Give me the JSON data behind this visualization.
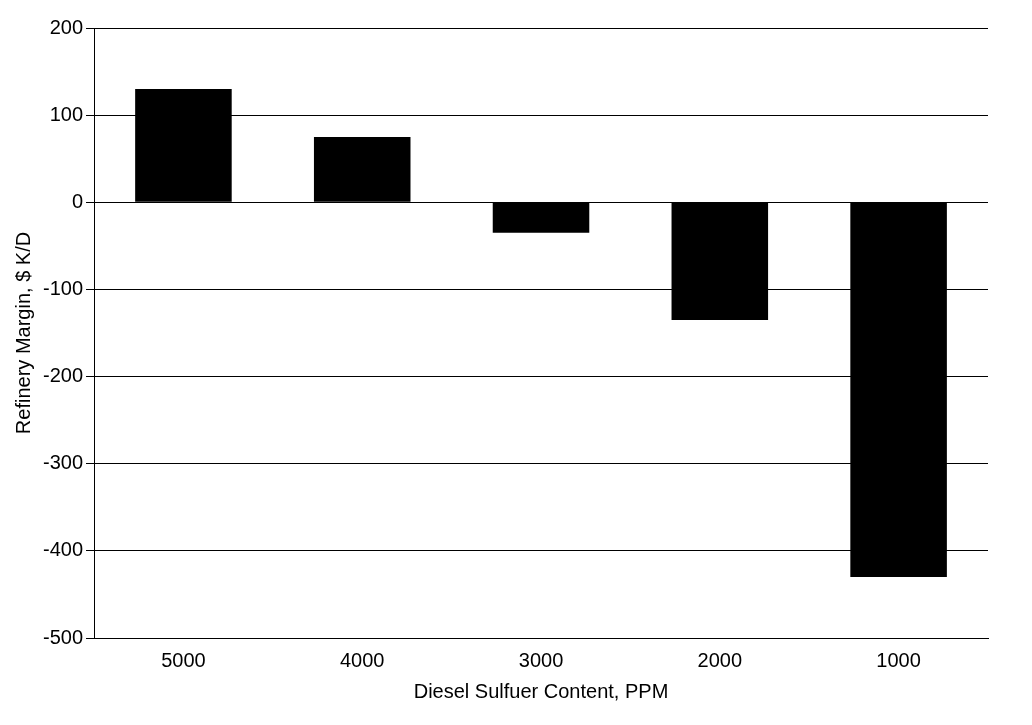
{
  "chart_data": {
    "type": "bar",
    "xlabel": "Diesel Sulfuer Content, PPM",
    "ylabel": "Refinery Margin, $ K/D",
    "categories": [
      "5000",
      "4000",
      "3000",
      "2000",
      "1000"
    ],
    "values": [
      130,
      75,
      -35,
      -135,
      -430
    ],
    "color": "#000000",
    "ylim": [
      -500,
      200
    ],
    "yticks": [
      -500,
      -400,
      -300,
      -200,
      -100,
      0,
      100,
      200
    ],
    "grid": "y",
    "legend": false
  }
}
